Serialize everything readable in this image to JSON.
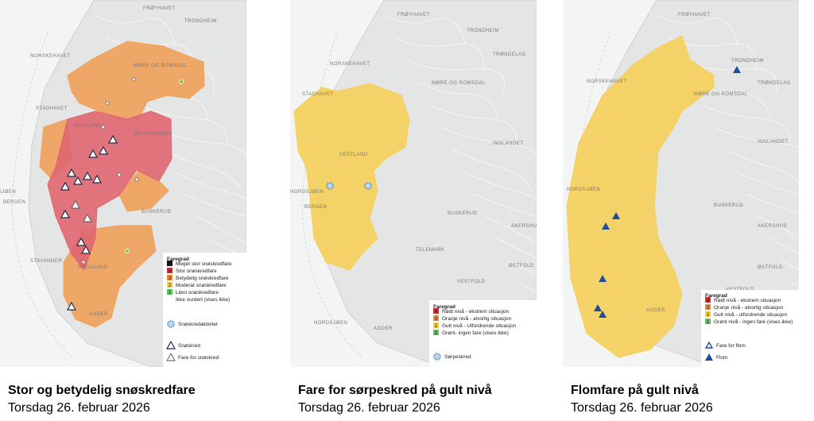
{
  "panels": [
    {
      "map_labels": [
        "FRØYHAVET",
        "NORSKEHAVET",
        "STADHAVET",
        "MØRE OG ROMSDAL",
        "TRONDHEIM",
        "VESTLAND",
        "NORDSJØEN",
        "BERGEN",
        "ROGALAND",
        "STAVANGER",
        "AGDER",
        "BUSKERUD",
        "JOTUNHEIMEN"
      ],
      "legend": {
        "title": "Faregrad",
        "levels": [
          {
            "level": "5",
            "label": "Meget stor snøskredfare",
            "color": "#111111"
          },
          {
            "level": "4",
            "label": "Stor snøskredfare",
            "color": "#e3262b"
          },
          {
            "level": "3",
            "label": "Betydelig snøskredfare",
            "color": "#f28a2e"
          },
          {
            "level": "2",
            "label": "Moderat snøskredfare",
            "color": "#f6cf3a"
          },
          {
            "level": "1",
            "label": "Liten snøskredfare",
            "color": "#5cc65c"
          },
          {
            "label": "Ikke vurdert (vises ikke)"
          }
        ],
        "symbols": [
          "Snøskredaktivitet",
          "Snøskred",
          "Fare for snøskred"
        ]
      },
      "caption": {
        "title": "Stor og betydelig snøskredfare",
        "date": "Torsdag 26. februar 2026"
      }
    },
    {
      "map_labels": [
        "FRØYHAVET",
        "NORSKEHAVET",
        "STADHAVET",
        "TRONDHEIM",
        "TRØNDELAG",
        "MØRE OG ROMSDAL",
        "INNLANDET",
        "VESTLAND",
        "NORDSJØEN",
        "BERGEN",
        "BUSKERUD",
        "TELEMARK",
        "VESTFOLD",
        "ØSTFOLD",
        "AKERSHUS",
        "AGDER",
        "NORDSJØEN"
      ],
      "legend": {
        "title": "Faregrad",
        "levels": [
          {
            "level": "4",
            "label": "Rødt nivå - ekstrem situasjon",
            "color": "#e3262b"
          },
          {
            "level": "3",
            "label": "Oranje nivå - alvorlig situasjon",
            "color": "#f28a2e"
          },
          {
            "level": "2",
            "label": "Gult nivå - Utfordrende situasjon",
            "color": "#f6cf3a"
          },
          {
            "level": "1",
            "label": "Grønt- ingen fare (vises ikke)",
            "color": "#5cc65c"
          }
        ],
        "symbols": [
          "Sørpeskred"
        ]
      },
      "caption": {
        "title": "Fare for sørpeskred på gult nivå",
        "date": "Torsdag 26. februar 2026"
      }
    },
    {
      "map_labels": [
        "FRØYHAVET",
        "NORSKEHAVET",
        "TRONDHEIM",
        "TRØNDELAG",
        "MØRE OG ROMSDAL",
        "INNLANDET",
        "NORDSJØEN",
        "BUSKERUD",
        "VESTFOLD",
        "ØSTFOLD",
        "AKERSHUS",
        "AGDER"
      ],
      "legend": {
        "title": "Faregrad",
        "levels": [
          {
            "level": "4",
            "label": "Rødt nivå - ekstrem situasjon",
            "color": "#e3262b"
          },
          {
            "level": "3",
            "label": "Oranje nivå - alvorlig situasjon",
            "color": "#f28a2e"
          },
          {
            "level": "2",
            "label": "Gult nivå - utfordrende situasjon",
            "color": "#f6cf3a"
          },
          {
            "level": "1",
            "label": "Grønt nivå - ingen fare (vises ikke)",
            "color": "#5cc65c"
          }
        ],
        "symbols": [
          "Fare for flom",
          "Flom"
        ]
      },
      "caption": {
        "title": "Flomfare på gult nivå",
        "date": "Torsdag 26. februar 2026"
      }
    }
  ]
}
